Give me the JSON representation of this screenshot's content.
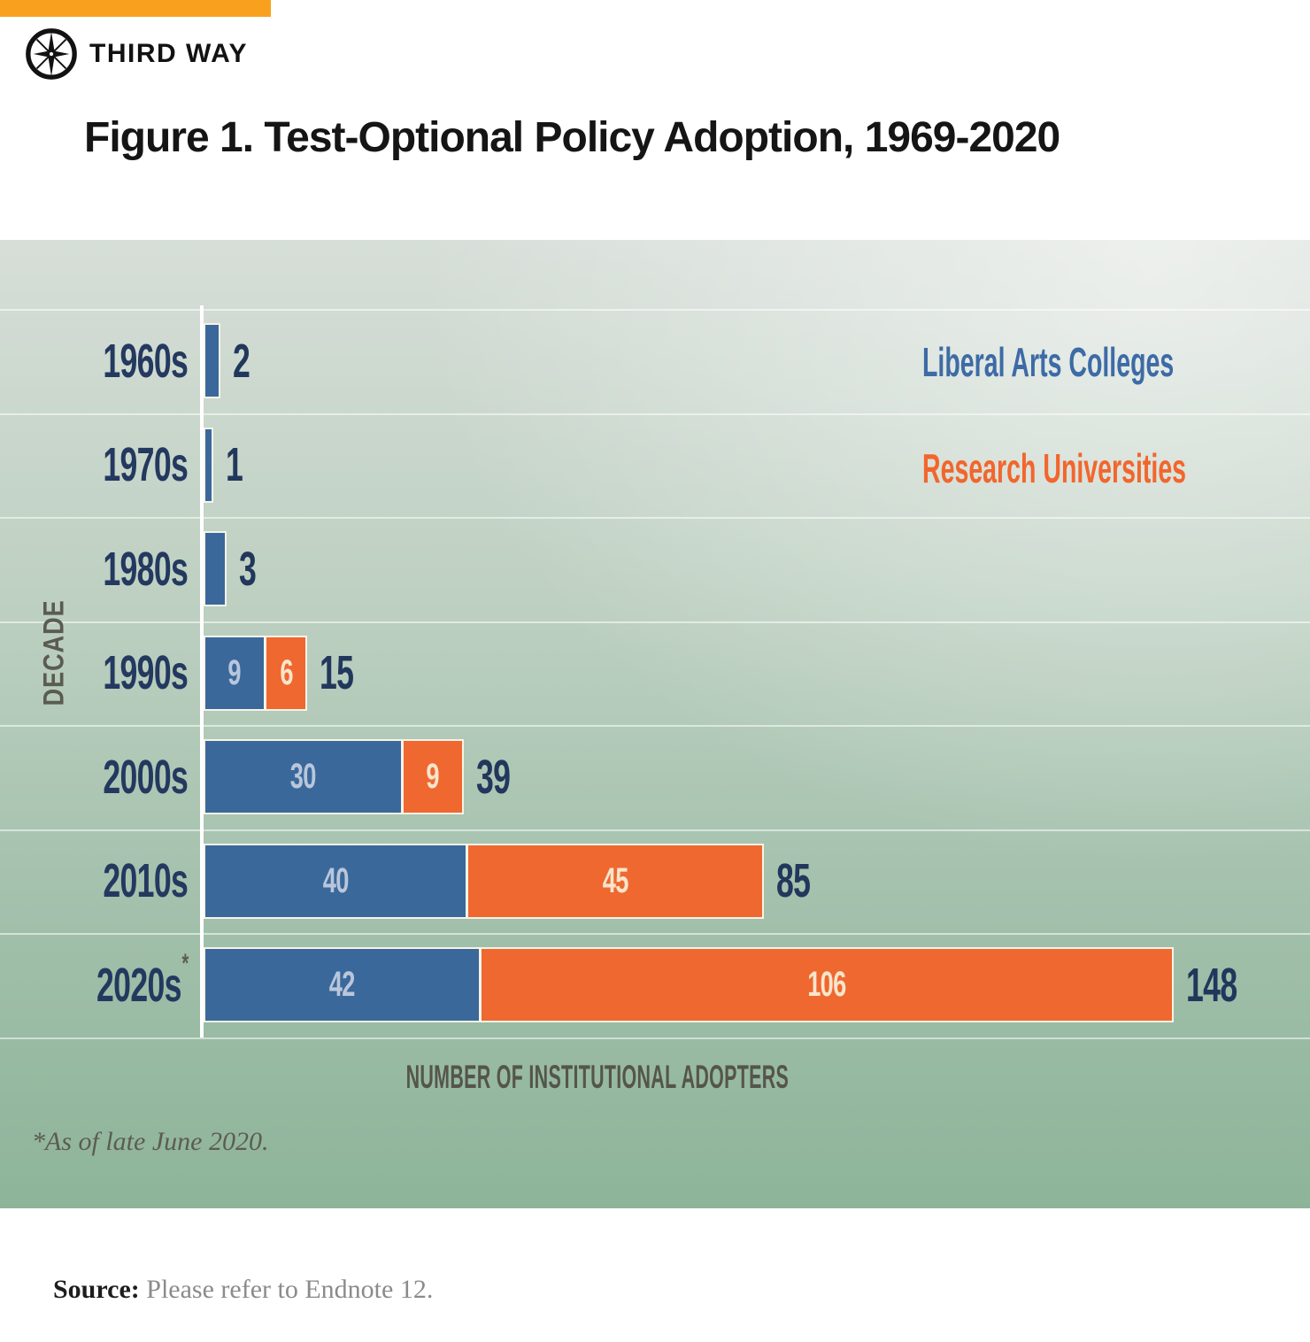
{
  "brand": {
    "logo_text": "THIRD WAY",
    "logo_icon": "compass-star-icon",
    "accent_color": "#f9a11e"
  },
  "title": "Figure 1. Test-Optional Policy Adoption, 1969-2020",
  "legend": {
    "items": [
      {
        "label": "Liberal Arts Colleges",
        "color": "#3d6ba6"
      },
      {
        "label": "Research Universities",
        "color": "#f2662c"
      }
    ],
    "position": "top-right"
  },
  "chart_data": {
    "type": "bar",
    "orientation": "horizontal",
    "stacked": true,
    "title": "Figure 1. Test-Optional Policy Adoption, 1969-2020",
    "categories": [
      "1960s",
      "1970s",
      "1980s",
      "1990s",
      "2000s",
      "2010s",
      "2020s*"
    ],
    "series": [
      {
        "name": "Liberal Arts Colleges",
        "color": "#3a689b",
        "value_label_color": "#b9c6db",
        "values": [
          2,
          1,
          3,
          9,
          30,
          40,
          42
        ]
      },
      {
        "name": "Research Universities",
        "color": "#ee6830",
        "value_label_color": "#f8e5cb",
        "values": [
          0,
          0,
          0,
          6,
          9,
          45,
          106
        ]
      }
    ],
    "totals": [
      2,
      1,
      3,
      15,
      39,
      85,
      148
    ],
    "total_label_color": "#22375c",
    "category_label_color": "#24395f",
    "xlabel": "NUMBER OF INSTITUTIONAL ADOPTERS",
    "ylabel": "DECADE",
    "xlim": [
      0,
      160
    ],
    "grid": "horizontal row separators, white",
    "legend_position": "top-right",
    "background": "textured green gradient"
  },
  "footnote": "*As of late June 2020.",
  "source": {
    "label": "Source:",
    "text": "Please refer to Endnote 12."
  }
}
